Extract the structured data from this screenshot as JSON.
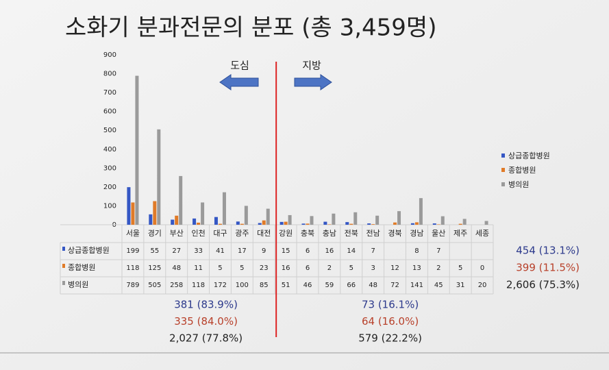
{
  "chart_data": {
    "type": "bar",
    "title": "소화기 분과전문의 분포 (총 3,459명)",
    "annotations": {
      "left": "도심",
      "right": "지방"
    },
    "categories": [
      "서울",
      "경기",
      "부산",
      "인천",
      "대구",
      "광주",
      "대전",
      "강원",
      "충북",
      "충남",
      "전북",
      "전남",
      "경북",
      "경남",
      "울산",
      "제주",
      "세종"
    ],
    "series": [
      {
        "name": "상급종합병원",
        "color": "#3557c4",
        "values": [
          199,
          55,
          27,
          33,
          41,
          17,
          9,
          15,
          6,
          16,
          14,
          7,
          null,
          8,
          7,
          null,
          null
        ],
        "total": "454 (13.1%)",
        "left_total": "381 (83.9%)",
        "right_total": "73 (16.1%)",
        "text_color": "#2d3a8c"
      },
      {
        "name": "종합병원",
        "color": "#e07b28",
        "values": [
          118,
          125,
          48,
          11,
          5,
          5,
          23,
          16,
          6,
          2,
          5,
          3,
          12,
          13,
          2,
          5,
          0
        ],
        "total": "399 (11.5%)",
        "left_total": "335 (84.0%)",
        "right_total": "64 (16.0%)",
        "text_color": "#b8402a"
      },
      {
        "name": "병의원",
        "color": "#9a9a9a",
        "values": [
          789,
          505,
          258,
          118,
          172,
          100,
          85,
          51,
          46,
          59,
          66,
          48,
          72,
          141,
          45,
          31,
          20
        ],
        "total": "2,606 (75.3%)",
        "left_total": "2,027 (77.8%)",
        "right_total": "579 (22.2%)",
        "text_color": "#222222"
      }
    ],
    "split_after": 7,
    "ylim": [
      0,
      900
    ],
    "yticks": [
      0,
      100,
      200,
      300,
      400,
      500,
      600,
      700,
      800,
      900
    ],
    "grid": false,
    "legend": "right"
  }
}
